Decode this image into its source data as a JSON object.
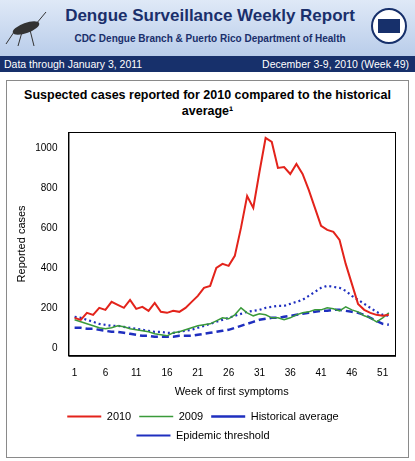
{
  "header": {
    "title": "Dengue Surveillance Weekly Report",
    "subtitle": "CDC Dengue Branch & Puerto Rico Department of Health",
    "data_through": "Data through January 3, 2011",
    "period": "December 3-9, 2010 (Week 49)"
  },
  "chart_data": {
    "type": "line",
    "title": "Suspected cases reported for 2010 compared to the historical average¹",
    "x_label": "Week of first symptoms",
    "y_label": "Reported cases",
    "x": [
      1,
      2,
      3,
      4,
      5,
      6,
      7,
      8,
      9,
      10,
      11,
      12,
      13,
      14,
      15,
      16,
      17,
      18,
      19,
      20,
      21,
      22,
      23,
      24,
      25,
      26,
      27,
      28,
      29,
      30,
      31,
      32,
      33,
      34,
      35,
      36,
      37,
      38,
      39,
      40,
      41,
      42,
      43,
      44,
      45,
      46,
      47,
      48,
      49,
      50,
      51,
      52
    ],
    "series": [
      {
        "name": "2010",
        "color": "#e3231b",
        "line_style": "solid",
        "values": [
          150,
          140,
          175,
          165,
          200,
          190,
          230,
          215,
          200,
          240,
          195,
          205,
          185,
          225,
          180,
          175,
          185,
          180,
          200,
          230,
          260,
          300,
          310,
          400,
          420,
          410,
          460,
          600,
          760,
          700,
          880,
          1050,
          1030,
          900,
          905,
          870,
          920,
          870,
          790,
          700,
          610,
          590,
          580,
          540,
          420,
          320,
          220,
          190,
          175,
          165,
          160,
          165
        ]
      },
      {
        "name": "2009",
        "color": "#3a9a3a",
        "line_style": "solid",
        "values": [
          140,
          130,
          120,
          110,
          100,
          95,
          100,
          110,
          105,
          95,
          90,
          85,
          80,
          70,
          65,
          60,
          75,
          80,
          90,
          100,
          110,
          115,
          120,
          135,
          150,
          145,
          165,
          200,
          175,
          160,
          170,
          165,
          150,
          150,
          140,
          150,
          165,
          175,
          180,
          190,
          190,
          200,
          195,
          185,
          205,
          190,
          180,
          160,
          150,
          130,
          150,
          175
        ]
      },
      {
        "name": "Historical average",
        "color": "#1f2fbf",
        "line_style": "dashed",
        "values": [
          100,
          100,
          95,
          95,
          90,
          85,
          80,
          80,
          75,
          70,
          65,
          60,
          60,
          55,
          55,
          55,
          55,
          60,
          60,
          60,
          65,
          70,
          75,
          80,
          85,
          90,
          100,
          110,
          120,
          130,
          140,
          145,
          150,
          150,
          155,
          160,
          165,
          170,
          175,
          180,
          185,
          185,
          190,
          190,
          185,
          180,
          175,
          165,
          150,
          135,
          120,
          115
        ]
      },
      {
        "name": "Epidemic threshold",
        "color": "#1f2fbf",
        "line_style": "dotted",
        "values": [
          155,
          150,
          140,
          130,
          120,
          115,
          110,
          110,
          105,
          100,
          95,
          90,
          85,
          80,
          80,
          75,
          75,
          80,
          85,
          90,
          100,
          110,
          120,
          130,
          140,
          150,
          160,
          170,
          180,
          185,
          190,
          200,
          205,
          210,
          210,
          220,
          230,
          240,
          260,
          280,
          300,
          310,
          305,
          300,
          285,
          260,
          240,
          220,
          200,
          180,
          165,
          160
        ]
      }
    ],
    "xlim": [
      0,
      53
    ],
    "xticks": [
      1,
      6,
      11,
      16,
      21,
      26,
      31,
      36,
      41,
      46,
      51
    ],
    "ylim": [
      -40,
      1080
    ],
    "yticks": [
      0,
      200,
      400,
      600,
      800,
      1000
    ],
    "grid": false,
    "legend": "bottom"
  }
}
